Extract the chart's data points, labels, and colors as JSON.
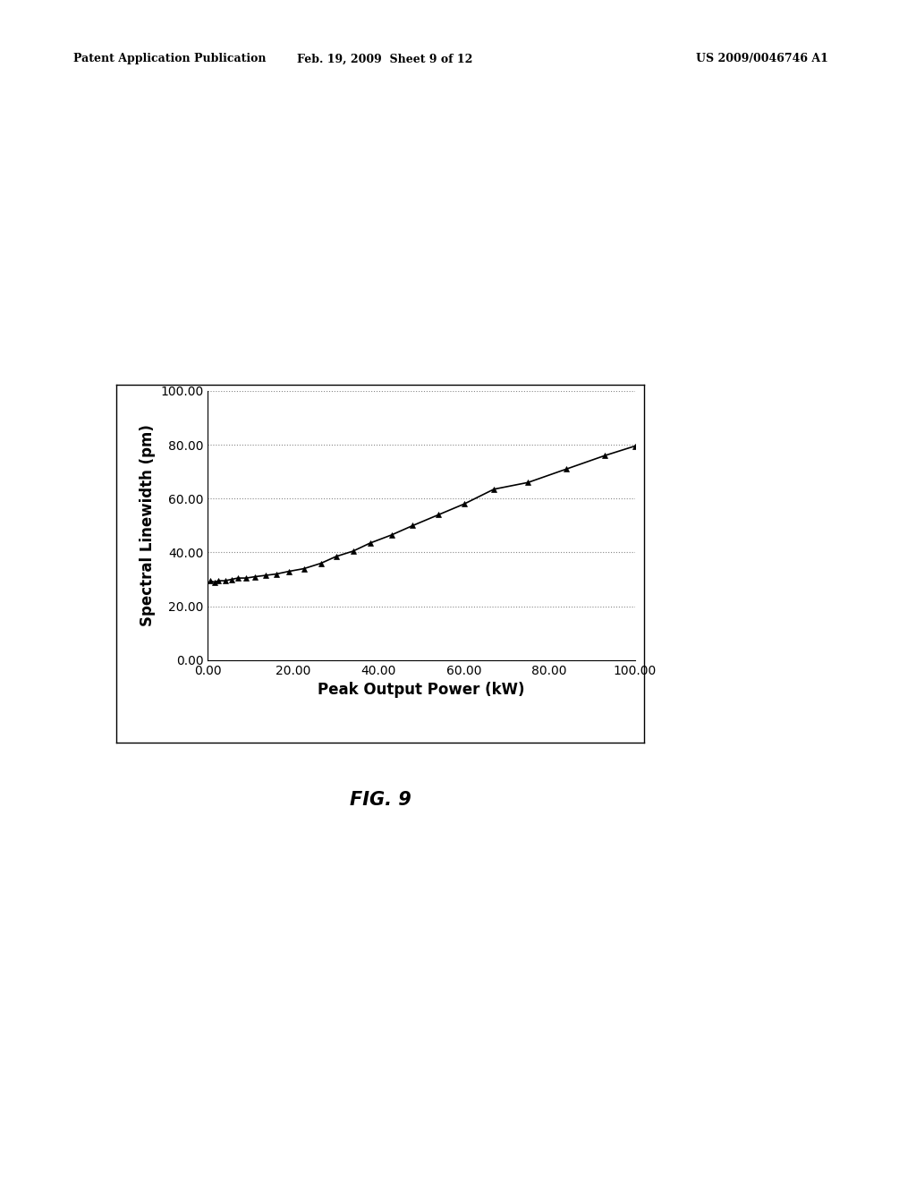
{
  "header_left": "Patent Application Publication",
  "header_mid": "Feb. 19, 2009  Sheet 9 of 12",
  "header_right": "US 2009/0046746 A1",
  "figure_label": "FIG. 9",
  "xlabel": "Peak Output Power (kW)",
  "ylabel": "Spectral Linewidth (pm)",
  "xlim": [
    0,
    100
  ],
  "ylim": [
    0,
    100
  ],
  "xticks": [
    0.0,
    20.0,
    40.0,
    60.0,
    80.0,
    100.0
  ],
  "yticks": [
    0.0,
    20.0,
    40.0,
    60.0,
    80.0,
    100.0
  ],
  "x_data": [
    0.5,
    1.5,
    2.5,
    4.0,
    5.5,
    7.0,
    9.0,
    11.0,
    13.5,
    16.0,
    19.0,
    22.5,
    26.5,
    30.0,
    34.0,
    38.0,
    43.0,
    48.0,
    54.0,
    60.0,
    67.0,
    75.0,
    84.0,
    93.0,
    100.0
  ],
  "y_data": [
    29.5,
    29.0,
    29.5,
    29.5,
    30.0,
    30.5,
    30.5,
    31.0,
    31.5,
    32.0,
    33.0,
    34.0,
    36.0,
    38.5,
    40.5,
    43.5,
    46.5,
    50.0,
    54.0,
    58.0,
    63.5,
    66.0,
    71.0,
    76.0,
    79.5
  ],
  "line_color": "#000000",
  "marker": "^",
  "marker_size": 5,
  "marker_facecolor": "#000000",
  "background_color": "#ffffff",
  "plot_bg_color": "#ffffff",
  "grid_color": "#888888",
  "border_color": "#000000",
  "header_fontsize": 9,
  "tick_fontsize": 10,
  "axis_label_fontsize": 12,
  "fig_label_fontsize": 15
}
